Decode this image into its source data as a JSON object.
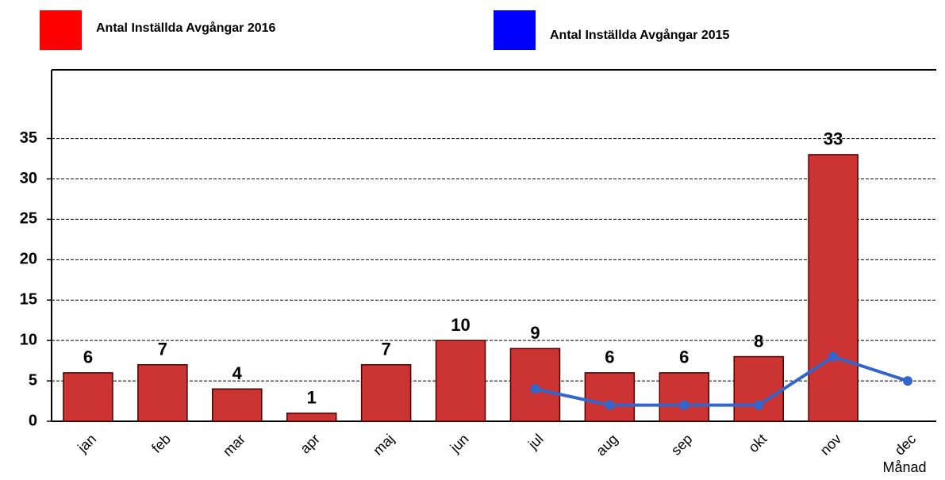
{
  "chart_data": {
    "type": "bar",
    "x_label": "Månad",
    "categories": [
      "jan",
      "feb",
      "mar",
      "apr",
      "maj",
      "jun",
      "jul",
      "aug",
      "sep",
      "okt",
      "nov",
      "dec"
    ],
    "series": [
      {
        "name": "Antal Inställda Avgångar 2016",
        "type": "bar",
        "color": "#cc3333",
        "legend_color": "#ff0000",
        "values": [
          6,
          7,
          4,
          1,
          7,
          10,
          9,
          6,
          6,
          8,
          33,
          null
        ]
      },
      {
        "name": "Antal Inställda Avgångar 2015",
        "type": "line",
        "color": "#3366cc",
        "legend_color": "#0000ff",
        "values": [
          null,
          null,
          null,
          null,
          null,
          null,
          4,
          2,
          2,
          2,
          8,
          5
        ]
      }
    ],
    "ylim": [
      0,
      43.5
    ],
    "yticks": [
      0,
      5,
      10,
      15,
      20,
      25,
      30,
      35
    ],
    "grid": true
  }
}
